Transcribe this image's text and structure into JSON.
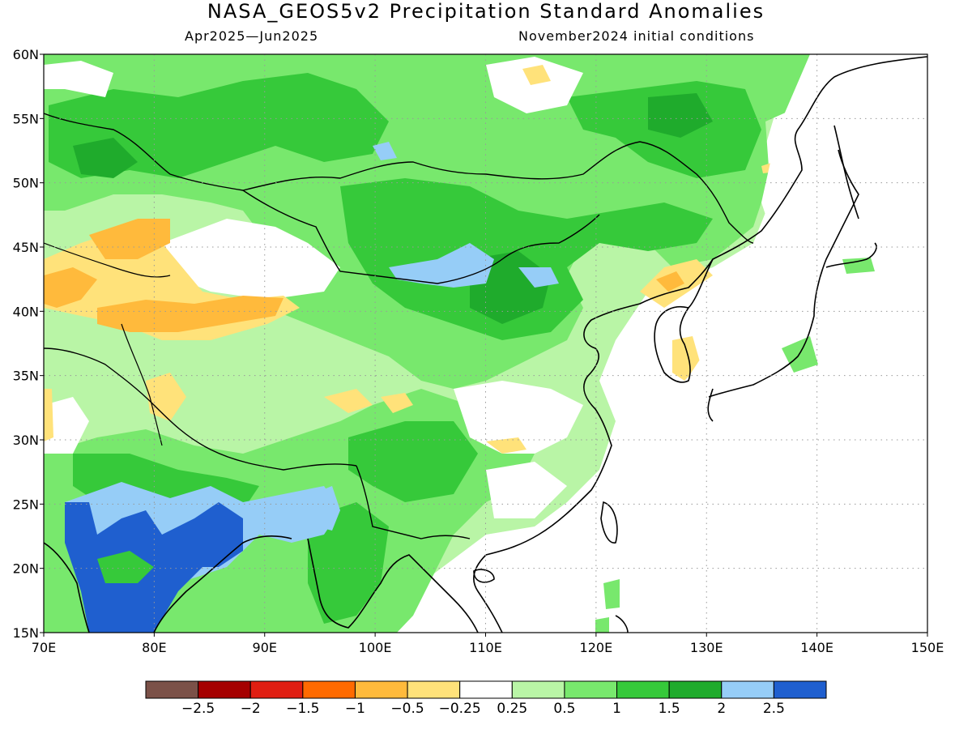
{
  "title": "NASA_GEOS5v2 Precipitation Standard Anomalies",
  "subtitle_left": "Apr2025—Jun2025",
  "subtitle_right": "November2024 initial conditions",
  "map": {
    "region": "East and South Asia",
    "lon_range": [
      70,
      150
    ],
    "lat_range": [
      15,
      60
    ],
    "lon_ticks": [
      "70E",
      "80E",
      "90E",
      "100E",
      "110E",
      "120E",
      "130E",
      "140E",
      "150E"
    ],
    "lat_ticks": [
      "15N",
      "20N",
      "25N",
      "30N",
      "35N",
      "40N",
      "45N",
      "50N",
      "55N",
      "60N"
    ],
    "gridlines": "dotted"
  },
  "legend": {
    "colors": [
      "#7b5148",
      "#a50000",
      "#e01e12",
      "#ff6a00",
      "#ffba3c",
      "#ffe27a",
      "#ffffff",
      "#b9f5a6",
      "#78e86d",
      "#36c93a",
      "#1fab2c",
      "#96cdf7",
      "#1f5fcf"
    ],
    "labels": [
      "−2.5",
      "−2",
      "−1.5",
      "−1",
      "−0.5",
      "−0.25",
      "0.25",
      "0.5",
      "1",
      "1.5",
      "2",
      "2.5"
    ]
  }
}
